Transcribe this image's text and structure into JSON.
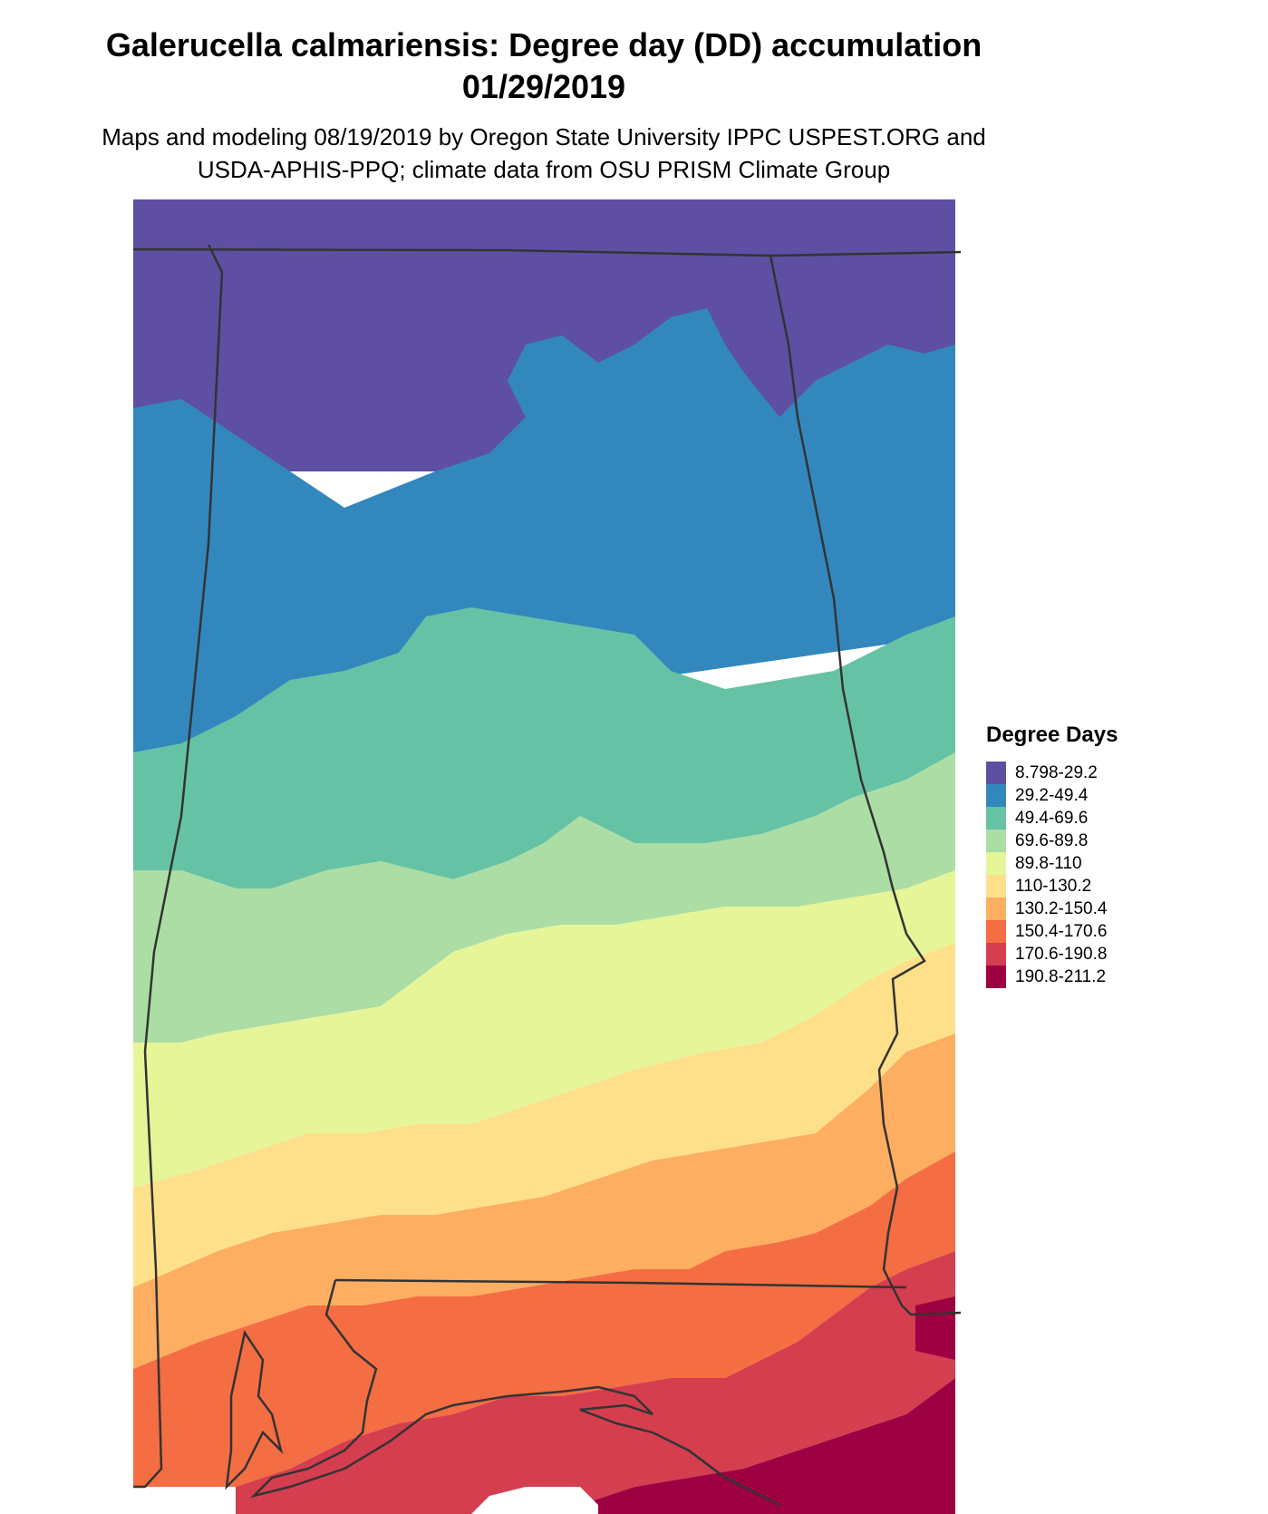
{
  "title_line1": "Galerucella calmariensis: Degree day (DD) accumulation",
  "title_line2": "01/29/2019",
  "subtitle_line1": "Maps and modeling 08/19/2019 by Oregon State University IPPC USPEST.ORG and",
  "subtitle_line2": "USDA-APHIS-PPQ; climate data from OSU PRISM Climate Group",
  "legend": {
    "title": "Degree Days",
    "items": [
      {
        "label": "8.798-29.2",
        "color": "#5e4fa2"
      },
      {
        "label": "29.2-49.4",
        "color": "#3288bd"
      },
      {
        "label": "49.4-69.6",
        "color": "#66c2a5"
      },
      {
        "label": "69.6-89.8",
        "color": "#abdda4"
      },
      {
        "label": "89.8-110",
        "color": "#e6f598"
      },
      {
        "label": "110-130.2",
        "color": "#fee08b"
      },
      {
        "label": "130.2-150.4",
        "color": "#fdae61"
      },
      {
        "label": "150.4-170.6",
        "color": "#f46d43"
      },
      {
        "label": "170.6-190.8",
        "color": "#d53e4f"
      },
      {
        "label": "190.8-211.2",
        "color": "#9e0142"
      }
    ]
  }
}
